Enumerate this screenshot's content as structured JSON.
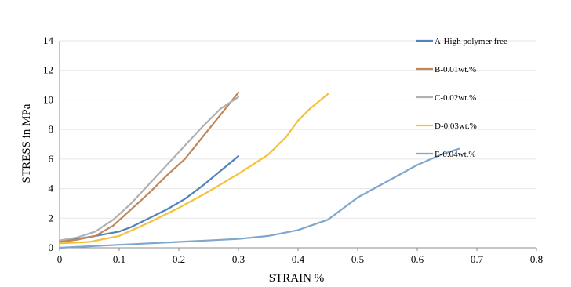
{
  "chart_data": {
    "type": "line",
    "title": "",
    "xlabel": "STRAIN  %",
    "ylabel": "STRESS  in  MPa",
    "xlim": [
      0,
      0.8
    ],
    "ylim": [
      0,
      14
    ],
    "x_ticks": [
      "0",
      "0.1",
      "0.2",
      "0.3",
      "0.4",
      "0.5",
      "0.6",
      "0.7",
      "0.8"
    ],
    "y_ticks": [
      "0",
      "2",
      "4",
      "6",
      "8",
      "10",
      "12",
      "14"
    ],
    "grid": "horizontal",
    "legend_position": "right",
    "series": [
      {
        "name": "A-High polymer free",
        "color": "#4f81bd",
        "x": [
          0,
          0.03,
          0.06,
          0.08,
          0.1,
          0.12,
          0.15,
          0.18,
          0.21,
          0.24,
          0.27,
          0.3
        ],
        "y": [
          0.4,
          0.6,
          0.8,
          0.95,
          1.1,
          1.4,
          2.0,
          2.6,
          3.3,
          4.2,
          5.2,
          6.2
        ]
      },
      {
        "name": "B-0.01wt.%",
        "color": "#c0875a",
        "x": [
          0,
          0.03,
          0.06,
          0.09,
          0.12,
          0.15,
          0.18,
          0.21,
          0.24,
          0.27,
          0.3
        ],
        "y": [
          0.4,
          0.55,
          0.8,
          1.5,
          2.6,
          3.7,
          4.9,
          6.0,
          7.5,
          9.0,
          10.5
        ]
      },
      {
        "name": "C-0.02wt.%",
        "color": "#b0b0b0",
        "x": [
          0,
          0.03,
          0.06,
          0.09,
          0.12,
          0.15,
          0.18,
          0.21,
          0.24,
          0.27,
          0.3
        ],
        "y": [
          0.5,
          0.7,
          1.1,
          1.9,
          3.0,
          4.3,
          5.6,
          6.9,
          8.2,
          9.4,
          10.2
        ]
      },
      {
        "name": "D-0.03wt.%",
        "color": "#f5c13c",
        "x": [
          0,
          0.05,
          0.1,
          0.15,
          0.2,
          0.25,
          0.3,
          0.35,
          0.38,
          0.4,
          0.42,
          0.45
        ],
        "y": [
          0.3,
          0.4,
          0.8,
          1.7,
          2.7,
          3.8,
          5.0,
          6.3,
          7.5,
          8.6,
          9.4,
          10.4
        ]
      },
      {
        "name": "E-0.04wt.%",
        "color": "#7fa7cc",
        "x": [
          0,
          0.1,
          0.2,
          0.3,
          0.35,
          0.4,
          0.45,
          0.5,
          0.55,
          0.6,
          0.64,
          0.67
        ],
        "y": [
          0,
          0.2,
          0.4,
          0.6,
          0.8,
          1.2,
          1.9,
          3.4,
          4.5,
          5.6,
          6.3,
          6.7
        ]
      }
    ]
  }
}
